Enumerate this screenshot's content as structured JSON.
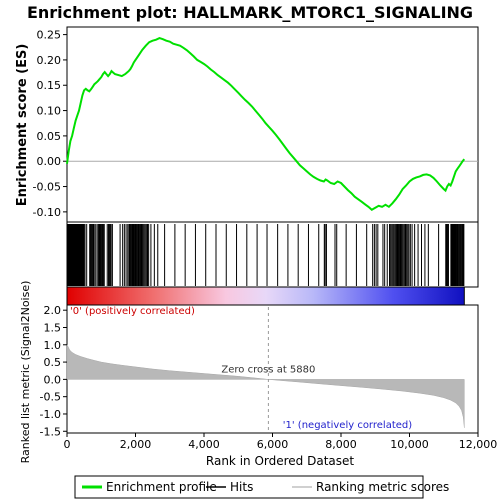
{
  "chart_data": {
    "type": "line",
    "title": "Enrichment plot: HALLMARK_MTORC1_SIGNALING",
    "xlabel": "Rank in Ordered Dataset",
    "es_panel": {
      "ylabel": "Enrichment score (ES)",
      "ylim": [
        -0.12,
        0.265
      ],
      "yticks": [
        -0.1,
        -0.05,
        0.0,
        0.05,
        0.1,
        0.15,
        0.2,
        0.25
      ],
      "ytick_labels": [
        "-0.10",
        "-0.05",
        "0.00",
        "0.05",
        "0.10",
        "0.15",
        "0.20",
        "0.25"
      ],
      "series_name": "Enrichment profile",
      "color": "#00e000",
      "points": [
        [
          0,
          -0.005
        ],
        [
          50,
          0.02
        ],
        [
          100,
          0.04
        ],
        [
          150,
          0.05
        ],
        [
          200,
          0.065
        ],
        [
          250,
          0.08
        ],
        [
          300,
          0.09
        ],
        [
          350,
          0.1
        ],
        [
          400,
          0.115
        ],
        [
          450,
          0.13
        ],
        [
          500,
          0.14
        ],
        [
          550,
          0.143
        ],
        [
          600,
          0.14
        ],
        [
          650,
          0.138
        ],
        [
          700,
          0.142
        ],
        [
          750,
          0.147
        ],
        [
          800,
          0.152
        ],
        [
          850,
          0.155
        ],
        [
          900,
          0.158
        ],
        [
          950,
          0.162
        ],
        [
          1000,
          0.166
        ],
        [
          1050,
          0.172
        ],
        [
          1100,
          0.176
        ],
        [
          1150,
          0.172
        ],
        [
          1200,
          0.168
        ],
        [
          1250,
          0.172
        ],
        [
          1300,
          0.178
        ],
        [
          1350,
          0.175
        ],
        [
          1400,
          0.172
        ],
        [
          1500,
          0.17
        ],
        [
          1600,
          0.168
        ],
        [
          1700,
          0.172
        ],
        [
          1800,
          0.178
        ],
        [
          1850,
          0.182
        ],
        [
          1900,
          0.188
        ],
        [
          1950,
          0.195
        ],
        [
          2000,
          0.2
        ],
        [
          2100,
          0.21
        ],
        [
          2200,
          0.22
        ],
        [
          2300,
          0.228
        ],
        [
          2400,
          0.235
        ],
        [
          2500,
          0.238
        ],
        [
          2600,
          0.24
        ],
        [
          2700,
          0.243
        ],
        [
          2800,
          0.241
        ],
        [
          2900,
          0.238
        ],
        [
          3000,
          0.236
        ],
        [
          3100,
          0.232
        ],
        [
          3200,
          0.23
        ],
        [
          3300,
          0.228
        ],
        [
          3400,
          0.224
        ],
        [
          3500,
          0.219
        ],
        [
          3600,
          0.213
        ],
        [
          3700,
          0.207
        ],
        [
          3800,
          0.2
        ],
        [
          3900,
          0.196
        ],
        [
          4000,
          0.192
        ],
        [
          4100,
          0.187
        ],
        [
          4200,
          0.181
        ],
        [
          4300,
          0.176
        ],
        [
          4400,
          0.17
        ],
        [
          4500,
          0.165
        ],
        [
          4600,
          0.16
        ],
        [
          4700,
          0.155
        ],
        [
          4800,
          0.149
        ],
        [
          4900,
          0.142
        ],
        [
          5000,
          0.135
        ],
        [
          5100,
          0.128
        ],
        [
          5200,
          0.121
        ],
        [
          5300,
          0.115
        ],
        [
          5400,
          0.108
        ],
        [
          5500,
          0.1
        ],
        [
          5600,
          0.092
        ],
        [
          5700,
          0.084
        ],
        [
          5800,
          0.075
        ],
        [
          5880,
          0.069
        ],
        [
          6000,
          0.06
        ],
        [
          6100,
          0.052
        ],
        [
          6200,
          0.043
        ],
        [
          6300,
          0.034
        ],
        [
          6400,
          0.025
        ],
        [
          6500,
          0.016
        ],
        [
          6600,
          0.008
        ],
        [
          6700,
          0.0
        ],
        [
          6800,
          -0.008
        ],
        [
          6900,
          -0.014
        ],
        [
          7000,
          -0.02
        ],
        [
          7100,
          -0.026
        ],
        [
          7200,
          -0.031
        ],
        [
          7300,
          -0.035
        ],
        [
          7400,
          -0.038
        ],
        [
          7500,
          -0.04
        ],
        [
          7550,
          -0.036
        ],
        [
          7600,
          -0.038
        ],
        [
          7700,
          -0.043
        ],
        [
          7800,
          -0.045
        ],
        [
          7900,
          -0.04
        ],
        [
          8000,
          -0.043
        ],
        [
          8100,
          -0.05
        ],
        [
          8200,
          -0.057
        ],
        [
          8300,
          -0.063
        ],
        [
          8400,
          -0.07
        ],
        [
          8500,
          -0.075
        ],
        [
          8600,
          -0.08
        ],
        [
          8700,
          -0.085
        ],
        [
          8800,
          -0.09
        ],
        [
          8900,
          -0.096
        ],
        [
          9000,
          -0.092
        ],
        [
          9100,
          -0.088
        ],
        [
          9200,
          -0.09
        ],
        [
          9300,
          -0.086
        ],
        [
          9400,
          -0.09
        ],
        [
          9500,
          -0.083
        ],
        [
          9600,
          -0.075
        ],
        [
          9700,
          -0.066
        ],
        [
          9800,
          -0.055
        ],
        [
          9900,
          -0.048
        ],
        [
          10000,
          -0.04
        ],
        [
          10100,
          -0.035
        ],
        [
          10200,
          -0.032
        ],
        [
          10300,
          -0.03
        ],
        [
          10400,
          -0.027
        ],
        [
          10500,
          -0.026
        ],
        [
          10600,
          -0.028
        ],
        [
          10700,
          -0.033
        ],
        [
          10800,
          -0.04
        ],
        [
          10900,
          -0.048
        ],
        [
          11000,
          -0.055
        ],
        [
          11050,
          -0.058
        ],
        [
          11100,
          -0.05
        ],
        [
          11150,
          -0.045
        ],
        [
          11200,
          -0.048
        ],
        [
          11250,
          -0.04
        ],
        [
          11300,
          -0.03
        ],
        [
          11350,
          -0.02
        ],
        [
          11400,
          -0.015
        ],
        [
          11450,
          -0.01
        ],
        [
          11500,
          -0.005
        ],
        [
          11550,
          0.0
        ],
        [
          11600,
          0.004
        ]
      ]
    },
    "hits_panel": {
      "series_name": "Hits"
    },
    "metric_panel": {
      "ylabel": "Ranked list metric (Signal2Noise)",
      "ylim": [
        -1.55,
        2.15
      ],
      "yticks": [
        -1.5,
        -1.0,
        -0.5,
        0.0,
        0.5,
        1.0,
        1.5,
        2.0
      ],
      "ytick_labels": [
        "-1.5",
        "-1.0",
        "-0.5",
        "0.0",
        "0.5",
        "1.0",
        "1.5",
        "2.0"
      ],
      "series_name": "Ranking metric scores",
      "points": [
        [
          0,
          1.0
        ],
        [
          30,
          0.95
        ],
        [
          80,
          0.85
        ],
        [
          150,
          0.78
        ],
        [
          250,
          0.72
        ],
        [
          400,
          0.66
        ],
        [
          600,
          0.6
        ],
        [
          800,
          0.55
        ],
        [
          1000,
          0.5
        ],
        [
          1300,
          0.45
        ],
        [
          1600,
          0.41
        ],
        [
          2000,
          0.36
        ],
        [
          2500,
          0.3
        ],
        [
          3000,
          0.25
        ],
        [
          3500,
          0.21
        ],
        [
          4000,
          0.17
        ],
        [
          4500,
          0.13
        ],
        [
          5000,
          0.09
        ],
        [
          5500,
          0.04
        ],
        [
          5880,
          0.0
        ],
        [
          6200,
          -0.03
        ],
        [
          6800,
          -0.08
        ],
        [
          7400,
          -0.13
        ],
        [
          8000,
          -0.18
        ],
        [
          8600,
          -0.23
        ],
        [
          9200,
          -0.28
        ],
        [
          9800,
          -0.34
        ],
        [
          10300,
          -0.4
        ],
        [
          10700,
          -0.46
        ],
        [
          11000,
          -0.53
        ],
        [
          11200,
          -0.6
        ],
        [
          11350,
          -0.68
        ],
        [
          11450,
          -0.78
        ],
        [
          11520,
          -0.9
        ],
        [
          11570,
          -1.1
        ],
        [
          11600,
          -1.4
        ]
      ],
      "zero_cross_label": "Zero cross at 5880",
      "zero_cross": 5880,
      "pos_label": "'0' (positively correlated)",
      "neg_label": "'1' (negatively correlated)"
    },
    "x_axis": {
      "xlim": [
        0,
        12000
      ],
      "xticks": [
        0,
        2000,
        4000,
        6000,
        8000,
        10000,
        12000
      ],
      "xtick_labels": [
        "0",
        "2,000",
        "4,000",
        "6,000",
        "8,000",
        "10,000",
        "12,000"
      ],
      "n_genes": 11600
    },
    "legend": {
      "placement": "bottom",
      "items": [
        {
          "label": "Enrichment profile",
          "color": "#00e000",
          "kind": "line"
        },
        {
          "label": "Hits",
          "color": "#000000",
          "kind": "line"
        },
        {
          "label": "Ranking metric scores",
          "color": "#c0c0c0",
          "kind": "line"
        }
      ]
    }
  }
}
